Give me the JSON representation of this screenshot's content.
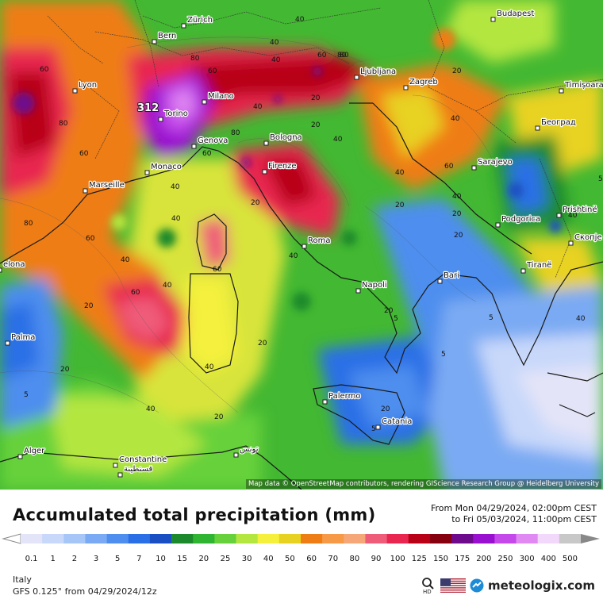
{
  "map": {
    "cities": [
      {
        "name": "Zürich"
      },
      {
        "name": "Bern"
      },
      {
        "name": "Lyon"
      },
      {
        "name": "Milano"
      },
      {
        "name": "Torino"
      },
      {
        "name": "Genova"
      },
      {
        "name": "Monaco"
      },
      {
        "name": "Marseille"
      },
      {
        "name": "Bologna"
      },
      {
        "name": "Firenze"
      },
      {
        "name": "Roma"
      },
      {
        "name": "Napoli"
      },
      {
        "name": "Bari"
      },
      {
        "name": "Palermo"
      },
      {
        "name": "Catania"
      },
      {
        "name": "Ljubljana"
      },
      {
        "name": "Zagreb"
      },
      {
        "name": "Budapest"
      },
      {
        "name": "Timișoara"
      },
      {
        "name": "Београд"
      },
      {
        "name": "Sarajevo"
      },
      {
        "name": "Podgorica"
      },
      {
        "name": "Prishtinë"
      },
      {
        "name": "Скопје"
      },
      {
        "name": "Tiranë"
      },
      {
        "name": "Palma"
      },
      {
        "name": "elona"
      },
      {
        "name": "Alger"
      },
      {
        "name": "Constantine"
      },
      {
        "name": "قسنطينة"
      },
      {
        "name": "تونس"
      }
    ],
    "peak_label": "312",
    "contour_labels": [
      "60",
      "80",
      "40",
      "60",
      "80",
      "20",
      "40",
      "80",
      "60",
      "40",
      "80",
      "60",
      "40",
      "60",
      "80",
      "20",
      "40",
      "20",
      "60",
      "40",
      "20",
      "40",
      "20",
      "5",
      "20",
      "40",
      "20",
      "40",
      "60",
      "20",
      "40",
      "5",
      "5",
      "5",
      "20",
      "40",
      "20",
      "40",
      "80",
      "40",
      "60",
      "40",
      "20",
      "40",
      "60",
      "20",
      "5",
      "40",
      "40",
      "5",
      "20"
    ],
    "attribution": "Map data © OpenStreetMap contributors, rendering GIScience Research Group @ Heidelberg University"
  },
  "legend": {
    "title": "Accumulated total precipitation (mm)",
    "from_line": "From Mon 04/29/2024, 02:00pm CEST",
    "to_line": "to Fri 05/03/2024, 11:00pm CEST",
    "scale": [
      {
        "label": "0.1",
        "color": "#e4e4f8"
      },
      {
        "label": "1",
        "color": "#c8d8fa"
      },
      {
        "label": "2",
        "color": "#a6c6f8"
      },
      {
        "label": "3",
        "color": "#7aaaf3"
      },
      {
        "label": "5",
        "color": "#4e8eee"
      },
      {
        "label": "7",
        "color": "#2a6fe6"
      },
      {
        "label": "10",
        "color": "#1a4fc4"
      },
      {
        "label": "15",
        "color": "#1c8a2c"
      },
      {
        "label": "20",
        "color": "#2fb531"
      },
      {
        "label": "25",
        "color": "#66d13a"
      },
      {
        "label": "30",
        "color": "#b4e640"
      },
      {
        "label": "40",
        "color": "#f4f03c"
      },
      {
        "label": "50",
        "color": "#e8d221"
      },
      {
        "label": "60",
        "color": "#ef7d16"
      },
      {
        "label": "70",
        "color": "#f79a48"
      },
      {
        "label": "80",
        "color": "#f5a778"
      },
      {
        "label": "90",
        "color": "#ef5c79"
      },
      {
        "label": "100",
        "color": "#e82650"
      },
      {
        "label": "125",
        "color": "#b80016"
      },
      {
        "label": "150",
        "color": "#86000f"
      },
      {
        "label": "175",
        "color": "#6e0a8c"
      },
      {
        "label": "200",
        "color": "#9a10d0"
      },
      {
        "label": "250",
        "color": "#c548ea"
      },
      {
        "label": "300",
        "color": "#e089f2"
      },
      {
        "label": "400",
        "color": "#f2d8fa"
      },
      {
        "label": "500",
        "color": "#c8c8c8"
      }
    ],
    "region": "Italy",
    "model_run": "GFS 0.125° from  04/29/2024/12z",
    "brand": "meteologix.com",
    "hd_label": "HD"
  }
}
